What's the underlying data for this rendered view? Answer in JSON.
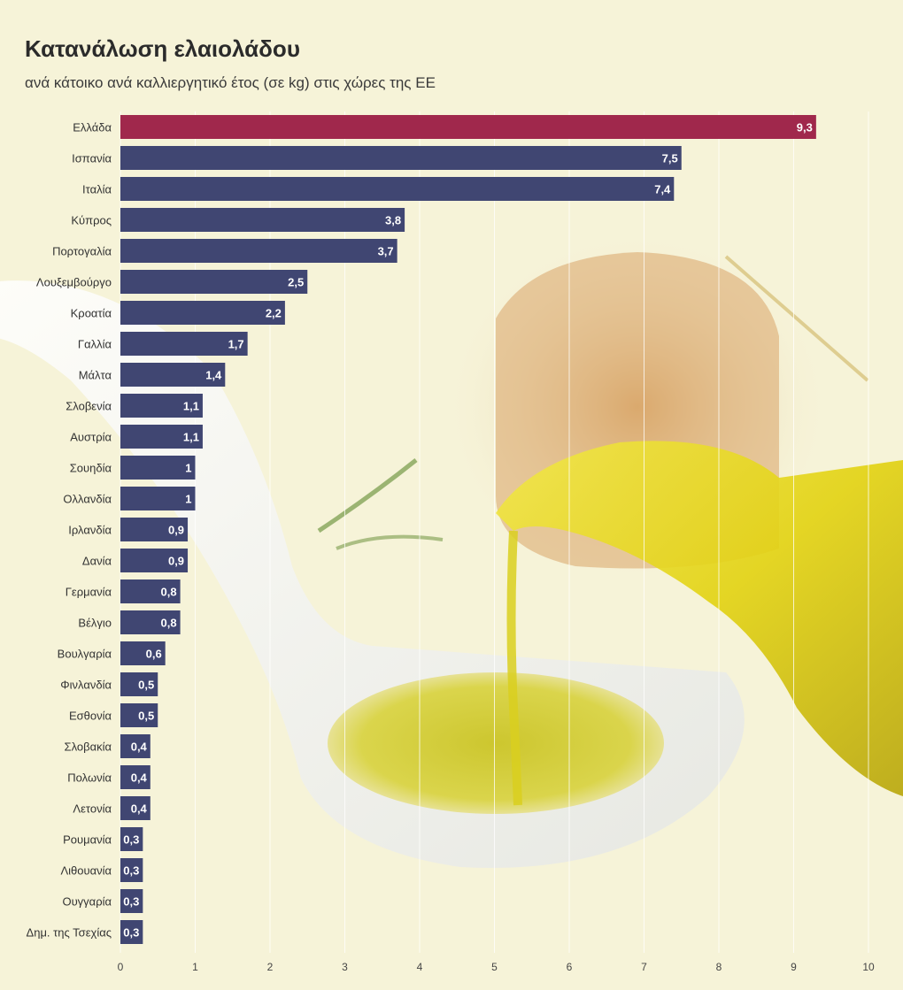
{
  "colors": {
    "highlight": "#a0284c",
    "bar": "#404672"
  },
  "chart_data": {
    "type": "bar",
    "orientation": "horizontal",
    "title": "Κατανάλωση ελαιολάδου",
    "subtitle": "ανά κάτοικο ανά καλλιεργητικό έτος (σε kg) στις χώρες της ΕΕ",
    "categories": [
      "Ελλάδα",
      "Ισπανία",
      "Ιταλία",
      "Κύπρος",
      "Πορτογαλία",
      "Λουξεμβούργο",
      "Κροατία",
      "Γαλλία",
      "Μάλτα",
      "Σλοβενία",
      "Αυστρία",
      "Σουηδία",
      "Ολλανδία",
      "Ιρλανδία",
      "Δανία",
      "Γερμανία",
      "Βέλγιο",
      "Βουλγαρία",
      "Φινλανδία",
      "Εσθονία",
      "Σλοβακία",
      "Πολωνία",
      "Λετονία",
      "Ρουμανία",
      "Λιθουανία",
      "Ουγγαρία",
      "Δημ. της Τσεχίας"
    ],
    "values": [
      9.3,
      7.5,
      7.4,
      3.8,
      3.7,
      2.5,
      2.2,
      1.7,
      1.4,
      1.1,
      1.1,
      1,
      1,
      0.9,
      0.9,
      0.8,
      0.8,
      0.6,
      0.5,
      0.5,
      0.4,
      0.4,
      0.4,
      0.3,
      0.3,
      0.3,
      0.3
    ],
    "value_labels": [
      "9,3",
      "7,5",
      "7,4",
      "3,8",
      "3,7",
      "2,5",
      "2,2",
      "1,7",
      "1,4",
      "1,1",
      "1,1",
      "1",
      "1",
      "0,9",
      "0,9",
      "0,8",
      "0,8",
      "0,6",
      "0,5",
      "0,5",
      "0,4",
      "0,4",
      "0,4",
      "0,3",
      "0,3",
      "0,3",
      "0,3"
    ],
    "highlight_index": 0,
    "xlim": [
      0,
      10
    ],
    "xticks": [
      0,
      1,
      2,
      3,
      4,
      5,
      6,
      7,
      8,
      9,
      10
    ],
    "grid": true
  }
}
